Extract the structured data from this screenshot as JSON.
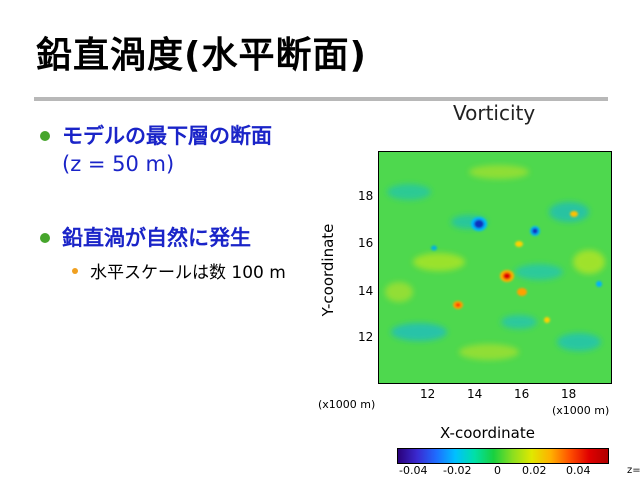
{
  "slide": {
    "title": "鉛直渦度(水平断面)",
    "bullet1_title": "モデルの最下層の断面",
    "bullet1_sub": "(z = 50 m)",
    "bullet2_title": "鉛直渦が自然に発生",
    "bullet3_text": "水平スケールは数 100 m"
  },
  "figure": {
    "title": "Vorticity",
    "y_axis_label": "Y-coordinate",
    "x_axis_label": "X-coordinate",
    "y_unit": "(x1000 m)",
    "x_unit": "(x1000 m)",
    "x_ticks": [
      "12",
      "14",
      "16",
      "18"
    ],
    "y_ticks": [
      "18",
      "16",
      "14",
      "12"
    ],
    "colorbar_ticks": [
      "-0.04",
      "-0.02",
      "0",
      "0.02",
      "0.04"
    ],
    "z_label": "z=",
    "colors": {
      "background_field": "#4ed84e",
      "positive": "#ff2000",
      "negative": "#1030c0",
      "bullet": "#46a52c",
      "text_blue": "#1a24c8"
    }
  }
}
